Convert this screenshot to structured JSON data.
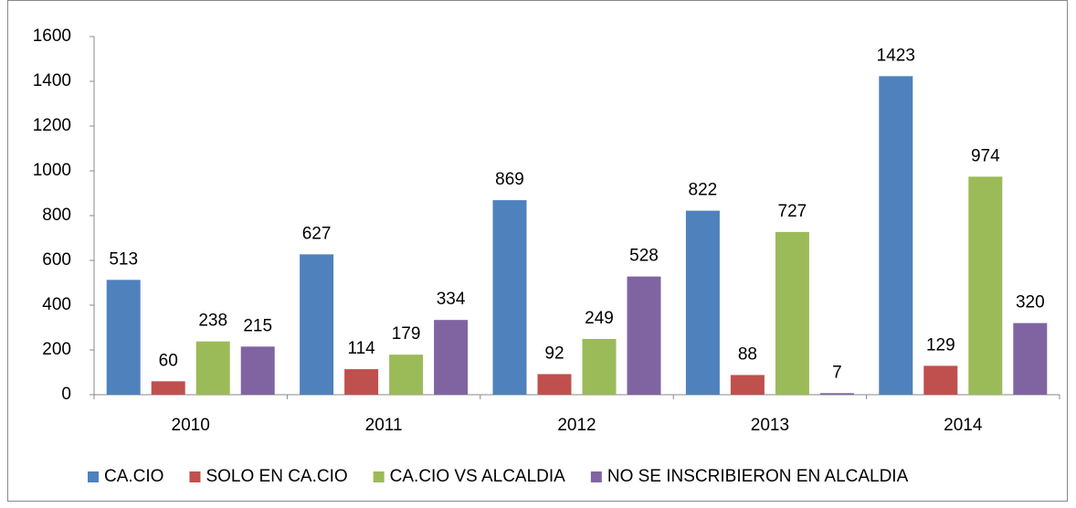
{
  "chart_data": {
    "type": "bar",
    "categories": [
      "2010",
      "2011",
      "2012",
      "2013",
      "2014"
    ],
    "series": [
      {
        "name": "CA.CIO",
        "color": "#4f81bd",
        "values": [
          513,
          627,
          869,
          822,
          1423
        ]
      },
      {
        "name": "SOLO EN CA.CIO",
        "color": "#c0504d",
        "values": [
          60,
          114,
          92,
          88,
          129
        ]
      },
      {
        "name": "CA.CIO VS ALCALDIA",
        "color": "#9bbb59",
        "values": [
          238,
          179,
          249,
          727,
          974
        ]
      },
      {
        "name": "NO SE INSCRIBIERON EN ALCALDIA",
        "color": "#8064a2",
        "values": [
          215,
          334,
          528,
          7,
          320
        ]
      }
    ],
    "ylim": [
      0,
      1600
    ],
    "yticks": [
      0,
      200,
      400,
      600,
      800,
      1000,
      1200,
      1400,
      1600
    ],
    "grid": false,
    "legend": "bottom"
  }
}
